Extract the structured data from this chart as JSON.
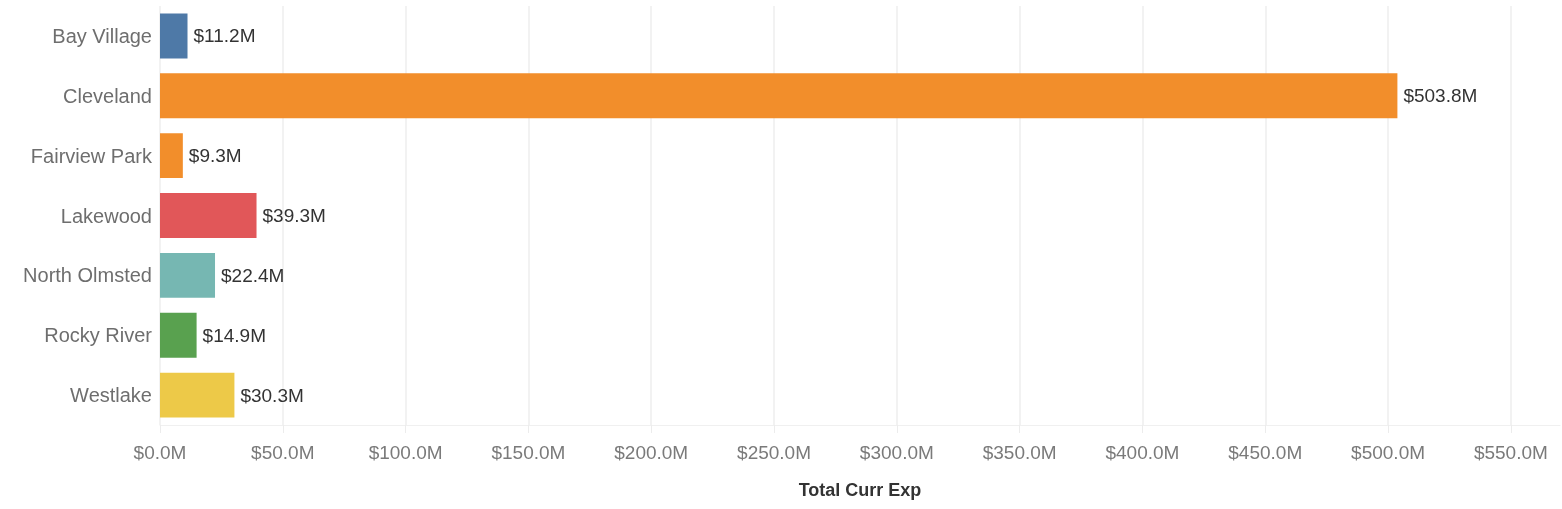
{
  "chart_data": {
    "type": "bar",
    "orientation": "horizontal",
    "xlabel": "Total Curr Exp",
    "categories": [
      "Bay Village",
      "Cleveland",
      "Fairview Park",
      "Lakewood",
      "North Olmsted",
      "Rocky River",
      "Westlake"
    ],
    "values": [
      11.2,
      503.8,
      9.3,
      39.3,
      22.4,
      14.9,
      30.3
    ],
    "colors": [
      "#4e79a7",
      "#f28e2b",
      "#f28e2b",
      "#e15759",
      "#76b7b2",
      "#59a14f",
      "#edc948"
    ],
    "value_labels": [
      "$11.2M",
      "$503.8M",
      "$9.3M",
      "$39.3M",
      "$22.4M",
      "$14.9M",
      "$30.3M"
    ],
    "xlim": [
      0,
      570
    ],
    "xticks": [
      {
        "value": 0,
        "label": "$0.0M"
      },
      {
        "value": 50,
        "label": "$50.0M"
      },
      {
        "value": 100,
        "label": "$100.0M"
      },
      {
        "value": 150,
        "label": "$150.0M"
      },
      {
        "value": 200,
        "label": "$200.0M"
      },
      {
        "value": 250,
        "label": "$250.0M"
      },
      {
        "value": 300,
        "label": "$300.0M"
      },
      {
        "value": 350,
        "label": "$350.0M"
      },
      {
        "value": 400,
        "label": "$400.0M"
      },
      {
        "value": 450,
        "label": "$450.0M"
      },
      {
        "value": 500,
        "label": "$500.0M"
      },
      {
        "value": 550,
        "label": "$550.0M"
      }
    ],
    "grid": "x"
  }
}
